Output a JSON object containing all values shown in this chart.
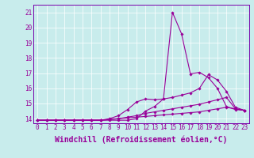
{
  "xlabel": "Windchill (Refroidissement éolien,°C)",
  "background_color": "#c8ecec",
  "line_color": "#990099",
  "spine_color": "#7700aa",
  "x_ticks": [
    0,
    1,
    2,
    3,
    4,
    5,
    6,
    7,
    8,
    9,
    10,
    11,
    12,
    13,
    14,
    15,
    16,
    17,
    18,
    19,
    20,
    21,
    22,
    23
  ],
  "y_ticks": [
    14,
    15,
    16,
    17,
    18,
    19,
    20,
    21
  ],
  "ylim": [
    13.7,
    21.5
  ],
  "xlim": [
    -0.5,
    23.5
  ],
  "series": [
    [
      13.9,
      13.9,
      13.9,
      13.9,
      13.9,
      13.9,
      13.9,
      13.9,
      13.9,
      13.9,
      13.9,
      14.0,
      14.5,
      14.8,
      15.3,
      21.0,
      19.6,
      16.95,
      17.05,
      16.7,
      16.0,
      14.8,
      14.6,
      14.55
    ],
    [
      13.9,
      13.9,
      13.9,
      13.9,
      13.9,
      13.9,
      13.9,
      13.9,
      14.0,
      14.2,
      14.6,
      15.1,
      15.3,
      15.25,
      15.3,
      15.4,
      15.55,
      15.7,
      16.0,
      16.9,
      16.55,
      15.8,
      14.75,
      14.55
    ],
    [
      13.9,
      13.9,
      13.9,
      13.9,
      13.9,
      13.9,
      13.9,
      13.9,
      13.95,
      14.0,
      14.1,
      14.2,
      14.35,
      14.45,
      14.55,
      14.65,
      14.75,
      14.85,
      14.95,
      15.1,
      15.25,
      15.4,
      14.65,
      14.55
    ],
    [
      13.9,
      13.9,
      13.9,
      13.9,
      13.9,
      13.9,
      13.9,
      13.9,
      13.95,
      14.0,
      14.05,
      14.1,
      14.15,
      14.2,
      14.25,
      14.3,
      14.35,
      14.4,
      14.45,
      14.55,
      14.65,
      14.75,
      14.65,
      14.55
    ]
  ],
  "marker": "D",
  "marker_size": 1.8,
  "linewidth": 0.8,
  "tick_fontsize": 5.5,
  "xlabel_fontsize": 7.0
}
